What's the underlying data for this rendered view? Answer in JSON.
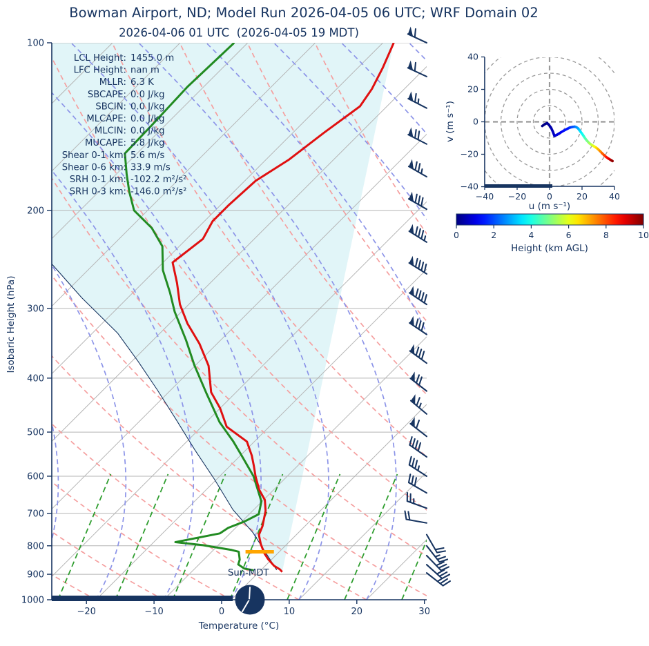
{
  "title": "Bowman Airport, ND; Model Run 2026-04-05 06 UTC; WRF Domain 02",
  "subtitle": "2026-04-06 01 UTC  (2026-04-05 19 MDT)",
  "colors": {
    "navy": "#173460",
    "temperature": "#e01010",
    "dewpoint": "#228B22",
    "parcel": "#173460",
    "shade": "#e1f5f8",
    "isotherm": "#b5b5b5",
    "dry_adiabat": "#f59f9f",
    "moist_adiabat": "#8c94e8",
    "mixing_ratio": "#2f9e2f",
    "lcl_marker": "#FFA500"
  },
  "skewt": {
    "ylabel": "Isobaric Height (hPa)",
    "xlabel": "Temperature (°C)",
    "pressure_ticks": [
      100,
      200,
      300,
      400,
      500,
      600,
      700,
      800,
      900,
      1000
    ],
    "temp_ticks": [
      -20,
      -10,
      0,
      10,
      20,
      30
    ],
    "sun_label": "Sun-MDT",
    "info": [
      {
        "label": "LCL Height:",
        "value": "1455.0 m"
      },
      {
        "label": "LFC Height:",
        "value": "nan m"
      },
      {
        "label": "MLLR:",
        "value": "6.3 K"
      },
      {
        "label": "SBCAPE:",
        "value": "0.0 J/kg"
      },
      {
        "label": "SBCIN:",
        "value": "0.0 J/kg"
      },
      {
        "label": "MLCAPE:",
        "value": "0.0 J/kg"
      },
      {
        "label": "MLCIN:",
        "value": "0.0 J/kg"
      },
      {
        "label": "MUCAPE:",
        "value": "5.8 J/kg"
      },
      {
        "label": "Shear 0-1 km:",
        "value": "5.6 m/s"
      },
      {
        "label": "Shear 0-6 km:",
        "value": "33.9 m/s"
      },
      {
        "label": "SRH 0-1 km:",
        "value": "-102.2 m²/s²"
      },
      {
        "label": "SRH 0-3 km:",
        "value": "-146.0 m²/s²"
      }
    ]
  },
  "hodograph": {
    "xlabel": "u (m s⁻¹)",
    "ylabel": "v (m s⁻¹)",
    "u_ticks": [
      -40,
      -20,
      0,
      20,
      40
    ],
    "v_ticks": [
      -40,
      -20,
      0,
      20,
      40
    ],
    "ring_radii": [
      10,
      20,
      30,
      40,
      50
    ]
  },
  "colorbar": {
    "label": "Height (km AGL)",
    "ticks": [
      0,
      2,
      4,
      6,
      8,
      10
    ],
    "min": 0,
    "max": 10
  },
  "chart_data": [
    {
      "type": "line",
      "name": "skew_t_log_p_sounding",
      "xlabel": "Temperature (°C)",
      "ylabel": "Isobaric Height (hPa)",
      "x_range": [
        -25,
        30
      ],
      "pressure_range": [
        100,
        1000
      ],
      "series": [
        {
          "name": "temperature",
          "units": "hPa,degC",
          "points": [
            [
              100,
              -58.4
            ],
            [
              111,
              -56.3
            ],
            [
              121,
              -54.8
            ],
            [
              130,
              -54.0
            ],
            [
              145,
              -55.4
            ],
            [
              162,
              -56.6
            ],
            [
              177,
              -58.4
            ],
            [
              196,
              -58.8
            ],
            [
              209,
              -58.8
            ],
            [
              225,
              -57.6
            ],
            [
              248,
              -58.6
            ],
            [
              270,
              -54.9
            ],
            [
              295,
              -51.3
            ],
            [
              319,
              -47.4
            ],
            [
              347,
              -42.6
            ],
            [
              380,
              -38.0
            ],
            [
              424,
              -33.7
            ],
            [
              453,
              -30.0
            ],
            [
              489,
              -26.3
            ],
            [
              520,
              -21.1
            ],
            [
              551,
              -18.3
            ],
            [
              576,
              -16.4
            ],
            [
              600,
              -14.7
            ],
            [
              634,
              -12.2
            ],
            [
              662,
              -9.8
            ],
            [
              692,
              -8.1
            ],
            [
              737,
              -6.3
            ],
            [
              765,
              -5.5
            ],
            [
              794,
              -3.9
            ],
            [
              825,
              -2.0
            ],
            [
              845,
              -0.6
            ],
            [
              869,
              1.3
            ],
            [
              882,
              2.7
            ],
            [
              891,
              3.4
            ]
          ]
        },
        {
          "name": "dewpoint",
          "units": "hPa,degC",
          "points": [
            [
              100,
              -82.0
            ],
            [
              120,
              -82.4
            ],
            [
              140,
              -82.0
            ],
            [
              158,
              -81.8
            ],
            [
              172,
              -78.5
            ],
            [
              185,
              -75.5
            ],
            [
              200,
              -72.0
            ],
            [
              215,
              -66.8
            ],
            [
              232,
              -62.5
            ],
            [
              256,
              -58.9
            ],
            [
              281,
              -54.5
            ],
            [
              304,
              -51.0
            ],
            [
              342,
              -45.1
            ],
            [
              379,
              -40.2
            ],
            [
              427,
              -34.1
            ],
            [
              480,
              -28.0
            ],
            [
              520,
              -23.1
            ],
            [
              551,
              -19.8
            ],
            [
              576,
              -17.3
            ],
            [
              600,
              -15.0
            ],
            [
              634,
              -12.4
            ],
            [
              666,
              -10.1
            ],
            [
              702,
              -8.6
            ],
            [
              723,
              -9.6
            ],
            [
              743,
              -11.1
            ],
            [
              760,
              -11.5
            ],
            [
              788,
              -16.8
            ],
            [
              798,
              -12.3
            ],
            [
              814,
              -7.3
            ],
            [
              820,
              -6.0
            ],
            [
              847,
              -4.7
            ],
            [
              864,
              -4.2
            ],
            [
              879,
              -2.7
            ],
            [
              885,
              -1.1
            ]
          ]
        },
        {
          "name": "parcel_path",
          "units": "hPa,degC",
          "points": [
            [
              884,
              2.3
            ],
            [
              820,
              -2.1
            ],
            [
              758,
              -6.7
            ],
            [
              689,
              -13.1
            ],
            [
              607,
              -20.4
            ],
            [
              538,
              -27.6
            ],
            [
              475,
              -34.8
            ],
            [
              420,
              -42.0
            ],
            [
              373,
              -49.1
            ],
            [
              332,
              -56.3
            ],
            [
              287,
              -66.8
            ],
            [
              249,
              -76.4
            ]
          ]
        }
      ],
      "lcl_marker": {
        "pressure": 820,
        "t_min": -5.0,
        "t_max": -0.8
      },
      "wind_barbs": [
        {
          "p": 100,
          "staff_angle": 205,
          "pennants": 1,
          "full": 1,
          "half": 0,
          "side": 1
        },
        {
          "p": 115,
          "staff_angle": 205,
          "pennants": 1,
          "full": 1,
          "half": 0,
          "side": 1
        },
        {
          "p": 131,
          "staff_angle": 207,
          "pennants": 1,
          "full": 1,
          "half": 1,
          "side": 1
        },
        {
          "p": 152,
          "staff_angle": 207,
          "pennants": 1,
          "full": 2,
          "half": 0,
          "side": 1
        },
        {
          "p": 174,
          "staff_angle": 210,
          "pennants": 1,
          "full": 2,
          "half": 1,
          "side": 1
        },
        {
          "p": 199,
          "staff_angle": 210,
          "pennants": 1,
          "full": 3,
          "half": 0,
          "side": 1
        },
        {
          "p": 228,
          "staff_angle": 212,
          "pennants": 1,
          "full": 3,
          "half": 1,
          "side": 1
        },
        {
          "p": 260,
          "staff_angle": 212,
          "pennants": 1,
          "full": 4,
          "half": 0,
          "side": 1
        },
        {
          "p": 295,
          "staff_angle": 214,
          "pennants": 1,
          "full": 4,
          "half": 0,
          "side": 1
        },
        {
          "p": 334,
          "staff_angle": 214,
          "pennants": 1,
          "full": 3,
          "half": 0,
          "side": 1
        },
        {
          "p": 376,
          "staff_angle": 216,
          "pennants": 1,
          "full": 3,
          "half": 0,
          "side": 1
        },
        {
          "p": 422,
          "staff_angle": 218,
          "pennants": 1,
          "full": 2,
          "half": 0,
          "side": 1
        },
        {
          "p": 464,
          "staff_angle": 220,
          "pennants": 1,
          "full": 1,
          "half": 1,
          "side": 1
        },
        {
          "p": 509,
          "staff_angle": 218,
          "pennants": 1,
          "full": 1,
          "half": 0,
          "side": 1
        },
        {
          "p": 554,
          "staff_angle": 215,
          "pennants": 0,
          "full": 4,
          "half": 0,
          "side": 1
        },
        {
          "p": 600,
          "staff_angle": 213,
          "pennants": 0,
          "full": 3,
          "half": 1,
          "side": 1
        },
        {
          "p": 643,
          "staff_angle": 210,
          "pennants": 0,
          "full": 3,
          "half": 0,
          "side": 1
        },
        {
          "p": 685,
          "staff_angle": 200,
          "pennants": 0,
          "full": 2,
          "half": 1,
          "side": 1
        },
        {
          "p": 728,
          "staff_angle": 190,
          "pennants": 0,
          "full": 2,
          "half": 0,
          "side": 1
        },
        {
          "p": 764,
          "staff_angle": 60,
          "pennants": 0,
          "full": 2,
          "half": 0,
          "side": -1
        },
        {
          "p": 800,
          "staff_angle": 52,
          "pennants": 0,
          "full": 2,
          "half": 1,
          "side": -1
        },
        {
          "p": 833,
          "staff_angle": 46,
          "pennants": 0,
          "full": 3,
          "half": 0,
          "side": -1
        },
        {
          "p": 865,
          "staff_angle": 42,
          "pennants": 0,
          "full": 3,
          "half": 0,
          "side": -1
        },
        {
          "p": 895,
          "staff_angle": 38,
          "pennants": 0,
          "full": 2,
          "half": 1,
          "side": -1
        }
      ]
    },
    {
      "type": "line",
      "name": "hodograph",
      "xlabel": "u (m s⁻¹)",
      "ylabel": "v (m s⁻¹)",
      "u_range": [
        -40,
        40
      ],
      "v_range": [
        -40,
        40
      ],
      "points_uvh": [
        [
          -4.5,
          -2.6,
          0
        ],
        [
          -3.0,
          -1.5,
          0.08
        ],
        [
          -1.5,
          -0.8,
          0.15
        ],
        [
          -0.5,
          -1.8,
          0.25
        ],
        [
          0.9,
          -3.6,
          0.4
        ],
        [
          2.0,
          -6.0,
          0.55
        ],
        [
          3.0,
          -8.7,
          0.7
        ],
        [
          4.5,
          -8.0,
          0.85
        ],
        [
          6.8,
          -6.6,
          1.0
        ],
        [
          9.0,
          -5.3,
          1.3
        ],
        [
          12.3,
          -3.6,
          1.6
        ],
        [
          14.0,
          -3.2,
          1.9
        ],
        [
          15.5,
          -3.0,
          2.2
        ],
        [
          16.5,
          -3.3,
          2.5
        ],
        [
          17.5,
          -4.0,
          2.8
        ],
        [
          18.3,
          -5.0,
          3.1
        ],
        [
          19.0,
          -6.0,
          3.4
        ],
        [
          20.0,
          -7.3,
          3.7
        ],
        [
          21.0,
          -8.8,
          4.0
        ],
        [
          22.0,
          -10.3,
          4.4
        ],
        [
          23.2,
          -11.8,
          4.8
        ],
        [
          24.5,
          -13.2,
          5.2
        ],
        [
          26.0,
          -14.3,
          5.6
        ],
        [
          27.5,
          -15.2,
          6.0
        ],
        [
          28.7,
          -15.9,
          6.4
        ],
        [
          29.8,
          -16.8,
          6.8
        ],
        [
          31.0,
          -18.0,
          7.2
        ],
        [
          32.3,
          -19.3,
          7.6
        ],
        [
          33.7,
          -20.7,
          8.0
        ],
        [
          35.0,
          -21.8,
          8.4
        ],
        [
          36.3,
          -22.7,
          8.8
        ],
        [
          37.5,
          -23.4,
          9.2
        ],
        [
          38.3,
          -23.9,
          9.6
        ],
        [
          38.8,
          -24.2,
          10
        ]
      ],
      "color_by": "height_km_agl",
      "colormap": "jet"
    }
  ]
}
